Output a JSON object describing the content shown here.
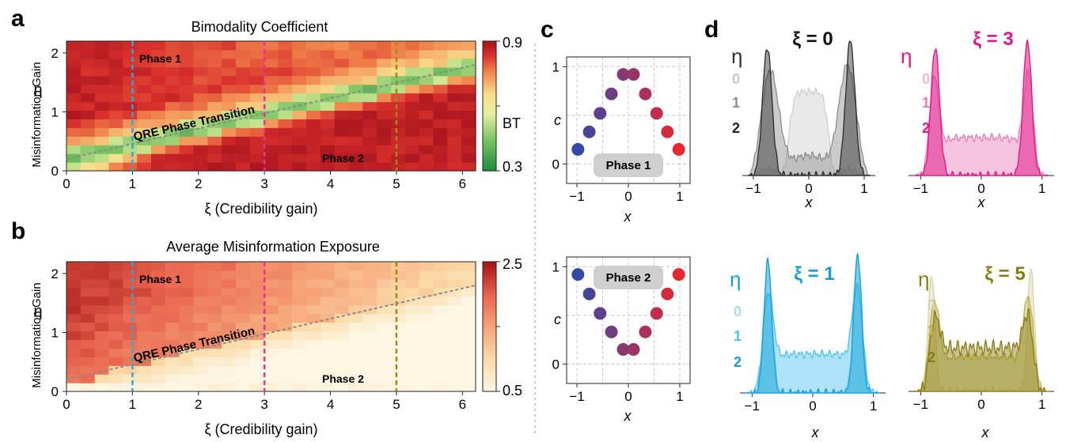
{
  "colors": {
    "xi1": "#29a9d9",
    "xi3": "#e6348b",
    "xi5": "#9a8a1e",
    "trans": "#8a8a8a",
    "eta0": "#cfcfcf",
    "eta1": "#8c8c8c",
    "eta2": "#2a2a2a",
    "pink0": "#f5b3d4",
    "pink1": "#e87cb5",
    "pink2": "#e0158a",
    "blue0": "#a8dcf2",
    "blue1": "#4cc2ee",
    "blue2": "#169fd8",
    "olive0": "#d8d2ae",
    "olive1": "#bcb04a",
    "olive2": "#8a7c14"
  },
  "panel_letters": {
    "a": "a",
    "b": "b",
    "c": "c",
    "d": "d"
  },
  "panel_a": {
    "title": "Bimodality Coefficient",
    "xlabel": "ξ (Credibility gain)",
    "ylabel_eta": "η",
    "ylabel": "Misinformation Gain",
    "colorbar": {
      "max_label": "0.9",
      "mid_label": "BT",
      "min_label": "0.3"
    },
    "phase1": "Phase 1",
    "phase2": "Phase 2",
    "transition": "QRE Phase Transition"
  },
  "panel_b": {
    "title": "Average Misinformation Exposure",
    "xlabel": "ξ (Credibility gain)",
    "ylabel_eta": "η",
    "ylabel": "Misinformation Gain",
    "colorbar": {
      "max_label": "2.5",
      "min_label": "0.5"
    },
    "phase1": "Phase 1",
    "phase2": "Phase 2",
    "transition": "QRE Phase Transition"
  },
  "panel_c": {
    "xlabel": "x",
    "ylabel": "c",
    "phase1_label": "Phase 1",
    "phase2_label": "Phase 2"
  },
  "panel_d": {
    "eta_symbol": "η",
    "xlabel": "x",
    "xi0_title": "ξ = 0",
    "xi3_title": "ξ = 3",
    "xi1_title": "ξ = 1",
    "xi5_title": "ξ = 5",
    "eta_values": [
      "0",
      "1",
      "2"
    ]
  },
  "chart_data": [
    {
      "type": "heatmap",
      "panel": "a",
      "title": "Bimodality Coefficient",
      "xlabel": "ξ (Credibility gain)",
      "ylabel": "Misinformation Gain",
      "xlim": [
        0,
        6.2
      ],
      "ylim": [
        0,
        2.2
      ],
      "xticks": [
        "0",
        "1",
        "2",
        "3",
        "4",
        "5",
        "6"
      ],
      "yticks": [
        "0",
        "1",
        "2"
      ],
      "colorscale": "green-yellow-red",
      "color_range": [
        0.3,
        0.9
      ],
      "vertical_lines": [
        1,
        3,
        5
      ],
      "transition_line": {
        "from": [
          0,
          0.2
        ],
        "to": [
          6.2,
          1.8
        ]
      }
    },
    {
      "type": "heatmap",
      "panel": "b",
      "title": "Average Misinformation Exposure",
      "xlabel": "ξ (Credibility gain)",
      "ylabel": "Misinformation Gain",
      "xlim": [
        0,
        6.2
      ],
      "ylim": [
        0,
        2.2
      ],
      "xticks": [
        "0",
        "1",
        "2",
        "3",
        "4",
        "5",
        "6"
      ],
      "yticks": [
        "0",
        "1",
        "2"
      ],
      "colorscale": "cream-red",
      "color_range": [
        0.5,
        2.5
      ],
      "vertical_lines": [
        1,
        3,
        5
      ],
      "transition_line": {
        "from": [
          0,
          0.2
        ],
        "to": [
          6.2,
          1.8
        ]
      }
    },
    {
      "type": "scatter",
      "panel": "c-phase1",
      "xlim": [
        -1.2,
        1.2
      ],
      "ylim": [
        -0.2,
        1.1
      ],
      "xticks": [
        "-1",
        "0",
        "1"
      ],
      "yticks": [
        "0",
        "1"
      ],
      "points": [
        {
          "x": -0.98,
          "y": 0.15
        },
        {
          "x": -0.76,
          "y": 0.33
        },
        {
          "x": -0.55,
          "y": 0.52
        },
        {
          "x": -0.33,
          "y": 0.72
        },
        {
          "x": -0.1,
          "y": 0.92
        },
        {
          "x": 0.1,
          "y": 0.92
        },
        {
          "x": 0.33,
          "y": 0.72
        },
        {
          "x": 0.55,
          "y": 0.52
        },
        {
          "x": 0.76,
          "y": 0.33
        },
        {
          "x": 0.98,
          "y": 0.15
        }
      ]
    },
    {
      "type": "scatter",
      "panel": "c-phase2",
      "xlim": [
        -1.2,
        1.2
      ],
      "ylim": [
        -0.2,
        1.1
      ],
      "xticks": [
        "-1",
        "0",
        "1"
      ],
      "yticks": [
        "0",
        "1"
      ],
      "points": [
        {
          "x": -0.98,
          "y": 0.92
        },
        {
          "x": -0.76,
          "y": 0.72
        },
        {
          "x": -0.55,
          "y": 0.52
        },
        {
          "x": -0.33,
          "y": 0.33
        },
        {
          "x": -0.1,
          "y": 0.15
        },
        {
          "x": 0.1,
          "y": 0.15
        },
        {
          "x": 0.33,
          "y": 0.33
        },
        {
          "x": 0.55,
          "y": 0.52
        },
        {
          "x": 0.76,
          "y": 0.72
        },
        {
          "x": 0.98,
          "y": 0.92
        }
      ]
    },
    {
      "type": "area",
      "panel": "d",
      "xlim": [
        -1.2,
        1.2
      ],
      "xticks": [
        "-1",
        "0",
        "1"
      ],
      "series_params": {
        "xi0": [
          {
            "eta": "0",
            "peak": 0.0,
            "width": 0.38,
            "shape": "central"
          },
          {
            "eta": "1",
            "peak": 0.7,
            "width": 0.22,
            "shape": "bimodal-wide"
          },
          {
            "eta": "2",
            "peak": 0.75,
            "width": 0.12,
            "shape": "bimodal"
          }
        ],
        "xi3": [
          {
            "eta": "0",
            "peak": 0.76,
            "width": 0.1,
            "shape": "bimodal"
          },
          {
            "eta": "1",
            "peak": 0.78,
            "width": 0.11,
            "shape": "bimodal-plateau"
          },
          {
            "eta": "2",
            "peak": 0.76,
            "width": 0.1,
            "shape": "bimodal"
          }
        ],
        "xi1": [
          {
            "eta": "0",
            "peak": 0.74,
            "width": 0.1,
            "shape": "bimodal"
          },
          {
            "eta": "1",
            "peak": 0.74,
            "width": 0.12,
            "shape": "bimodal-plateau"
          },
          {
            "eta": "2",
            "peak": 0.74,
            "width": 0.09,
            "shape": "bimodal"
          }
        ],
        "xi5": [
          {
            "eta": "0",
            "peak": 0.82,
            "width": 0.08,
            "shape": "bimodal"
          },
          {
            "eta": "1",
            "peak": 0.78,
            "width": 0.12,
            "shape": "bimodal-plateau"
          },
          {
            "eta": "2",
            "peak": 0.78,
            "width": 0.12,
            "shape": "noisy-plateau"
          }
        ]
      }
    }
  ]
}
